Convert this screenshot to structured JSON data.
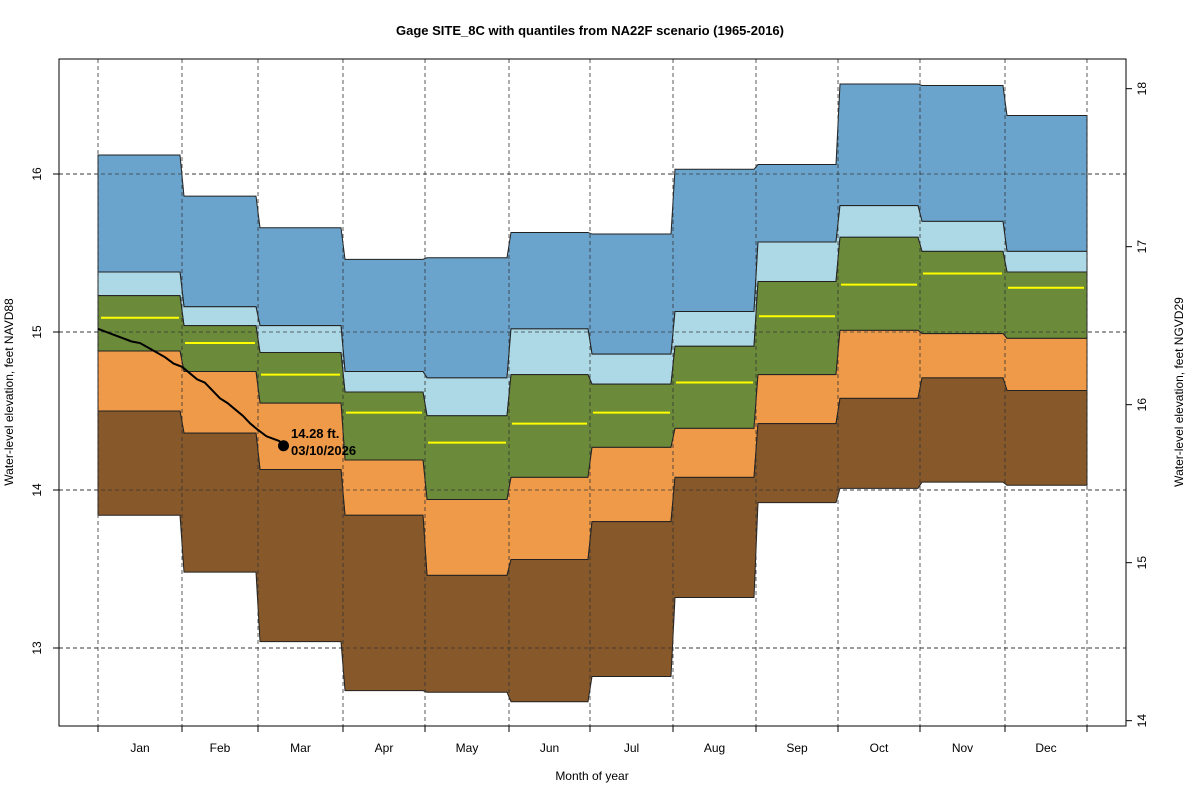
{
  "chart_data": {
    "type": "area",
    "title": "Gage SITE_8C with quantiles from NA22F scenario (1965-2016)",
    "xlabel": "Month of year",
    "ylabel": "Water-level elevation, feet NAVD88",
    "ylabel_right": "Water-level elevation, feet NGVD29",
    "ylim": [
      12.5,
      16.7
    ],
    "yticks": [
      13,
      14,
      15,
      16
    ],
    "ylim_right_offset": 1.46,
    "yticks_right": [
      14,
      15,
      16,
      17,
      18
    ],
    "grid": true,
    "categories": [
      "Jan",
      "Feb",
      "Mar",
      "Apr",
      "May",
      "Jun",
      "Jul",
      "Aug",
      "Sep",
      "Oct",
      "Nov",
      "Dec"
    ],
    "quantile_bands": [
      {
        "name": "max-to-q90",
        "color": "#6aa3cb",
        "upper": "max",
        "lower": "q90"
      },
      {
        "name": "q90-to-q75",
        "color": "#add8e6",
        "upper": "q90",
        "lower": "q75"
      },
      {
        "name": "q75-to-q25",
        "color": "#6b8a3a",
        "upper": "q75",
        "lower": "q25"
      },
      {
        "name": "q25-to-q10",
        "color": "#ef9a48",
        "upper": "q25",
        "lower": "q10"
      },
      {
        "name": "q10-to-min",
        "color": "#87582a",
        "upper": "q10",
        "lower": "min"
      }
    ],
    "series": [
      {
        "name": "max",
        "values": [
          16.12,
          15.86,
          15.66,
          15.46,
          15.47,
          15.63,
          15.62,
          16.03,
          16.06,
          16.57,
          16.56,
          16.37
        ]
      },
      {
        "name": "q90",
        "values": [
          15.38,
          15.16,
          15.04,
          14.75,
          14.71,
          15.02,
          14.86,
          15.13,
          15.57,
          15.8,
          15.7,
          15.51
        ]
      },
      {
        "name": "q75",
        "values": [
          15.23,
          15.04,
          14.87,
          14.62,
          14.47,
          14.73,
          14.67,
          14.91,
          15.32,
          15.6,
          15.51,
          15.38
        ]
      },
      {
        "name": "median",
        "values": [
          15.09,
          14.93,
          14.73,
          14.49,
          14.3,
          14.42,
          14.49,
          14.68,
          15.1,
          15.3,
          15.37,
          15.28
        ]
      },
      {
        "name": "q25",
        "values": [
          14.88,
          14.75,
          14.55,
          14.19,
          13.94,
          14.08,
          14.27,
          14.39,
          14.73,
          15.01,
          14.99,
          14.96
        ]
      },
      {
        "name": "q10",
        "values": [
          14.5,
          14.36,
          14.13,
          13.84,
          13.46,
          13.56,
          13.8,
          14.08,
          14.42,
          14.58,
          14.71,
          14.63
        ]
      },
      {
        "name": "min",
        "values": [
          13.84,
          13.48,
          13.04,
          12.73,
          12.72,
          12.66,
          12.82,
          13.32,
          13.92,
          14.01,
          14.05,
          14.03
        ]
      }
    ],
    "median_color": "#ffff00",
    "observed": {
      "name": "current-year water level",
      "color": "#000000",
      "x_month": [
        0.0,
        0.1,
        0.2,
        0.3,
        0.4,
        0.5,
        0.6,
        0.7,
        0.8,
        0.9,
        1.0,
        1.1,
        1.2,
        1.3,
        1.4,
        1.5,
        1.6,
        1.7,
        1.8,
        1.9,
        2.0,
        2.1,
        2.25,
        2.3
      ],
      "values": [
        15.02,
        15.0,
        14.98,
        14.96,
        14.94,
        14.93,
        14.9,
        14.87,
        14.84,
        14.8,
        14.78,
        14.74,
        14.7,
        14.68,
        14.63,
        14.58,
        14.55,
        14.51,
        14.47,
        14.42,
        14.38,
        14.34,
        14.31,
        14.28
      ],
      "last_value_label": "14.28 ft.",
      "last_date_label": "03/10/2026"
    }
  }
}
